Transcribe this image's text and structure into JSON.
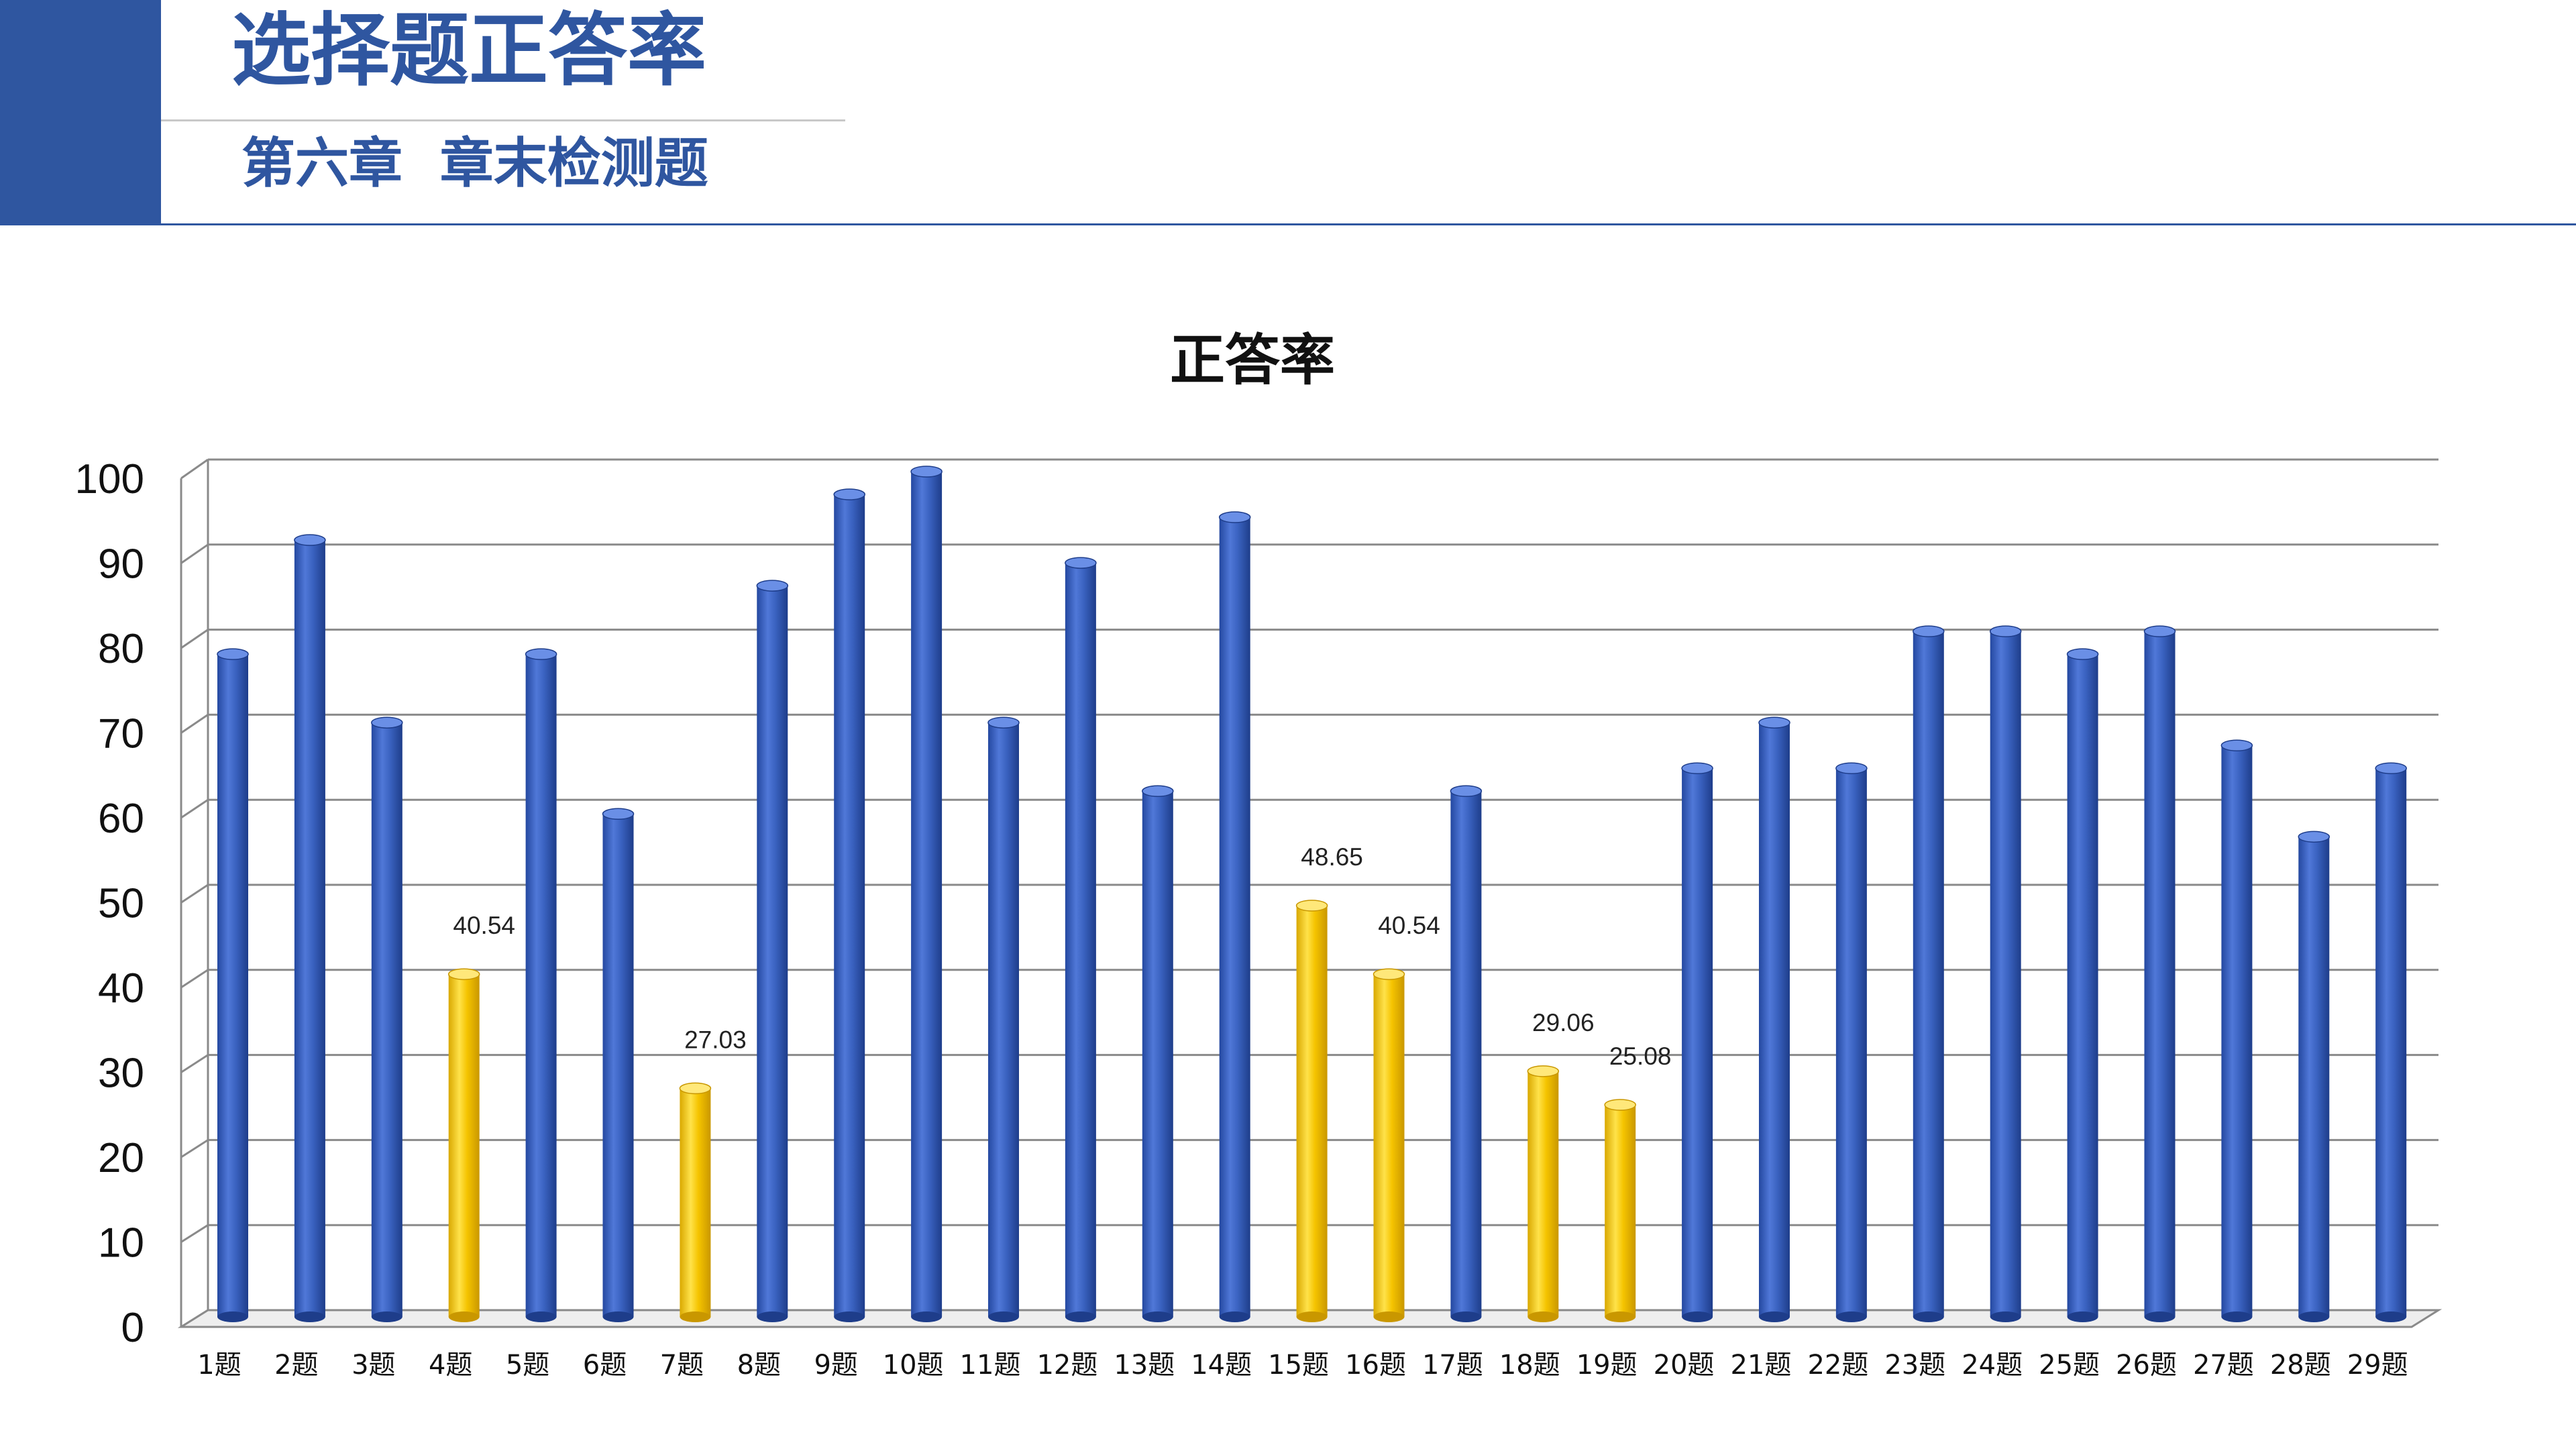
{
  "header": {
    "title": "选择题正答率",
    "subtitle": "第六章  章末检测题"
  },
  "colors": {
    "accent": "#2f56a0",
    "bar_blue": "#3a62c0",
    "bar_yellow": "#f5c400"
  },
  "chart_data": {
    "type": "bar",
    "title": "正答率",
    "xlabel": "",
    "ylabel": "",
    "ylim": [
      0,
      100
    ],
    "yticks": [
      "0",
      "10",
      "20",
      "30",
      "40",
      "50",
      "60",
      "70",
      "80",
      "90",
      "100"
    ],
    "grid": true,
    "legend": "none",
    "categories": [
      "1题",
      "2题",
      "3题",
      "4题",
      "5题",
      "6题",
      "7题",
      "8题",
      "9题",
      "10题",
      "11题",
      "12题",
      "13题",
      "14题",
      "15题",
      "16题",
      "17题",
      "18题",
      "19题",
      "20题",
      "21题",
      "22题",
      "23题",
      "24题",
      "25题",
      "26题",
      "27题",
      "28题",
      "29题"
    ],
    "values": [
      78.4,
      91.9,
      70.3,
      40.54,
      78.4,
      59.5,
      27.03,
      86.5,
      97.3,
      100,
      70.3,
      89.2,
      62.2,
      94.6,
      48.65,
      40.54,
      62.2,
      29.06,
      25.08,
      64.9,
      70.3,
      64.9,
      81.1,
      81.1,
      78.4,
      81.1,
      67.6,
      56.8,
      64.9
    ],
    "highlighted": [
      false,
      false,
      false,
      true,
      false,
      false,
      true,
      false,
      false,
      false,
      false,
      false,
      false,
      false,
      true,
      true,
      false,
      true,
      true,
      false,
      false,
      false,
      false,
      false,
      false,
      false,
      false,
      false,
      false
    ],
    "data_labels": [
      "",
      "",
      "",
      "40.54",
      "",
      "",
      "27.03",
      "",
      "",
      "",
      "",
      "",
      "",
      "",
      "48.65",
      "40.54",
      "",
      "29.06",
      "25.08",
      "",
      "",
      "",
      "",
      "",
      "",
      "",
      "",
      "",
      ""
    ]
  }
}
